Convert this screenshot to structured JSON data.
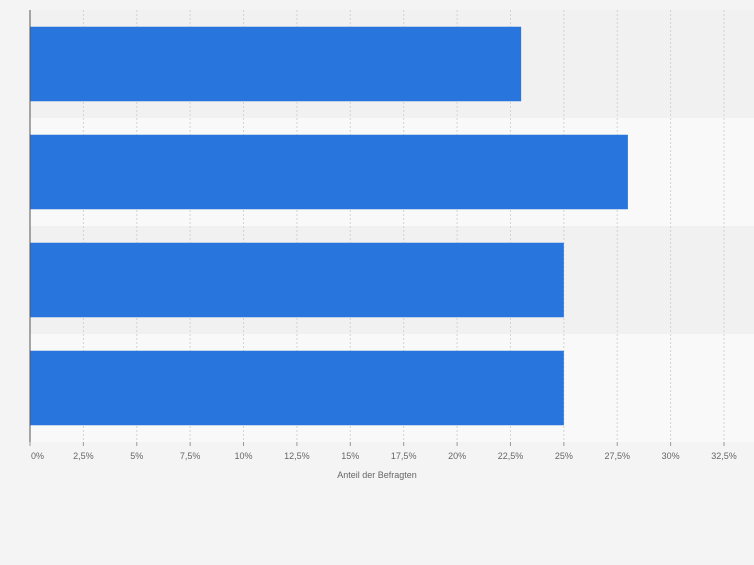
{
  "chart_data": {
    "type": "bar",
    "orientation": "horizontal",
    "categories": [
      "",
      "",
      "",
      ""
    ],
    "values": [
      23,
      28,
      25,
      25
    ],
    "xlabel": "Anteil der Befragten",
    "ylabel": "",
    "xlim": [
      0,
      32.5
    ],
    "ticks": [
      0,
      2.5,
      5,
      7.5,
      10,
      12.5,
      15,
      17.5,
      20,
      22.5,
      25,
      27.5,
      30,
      32.5
    ],
    "tick_labels": [
      "0%",
      "2,5%",
      "5%",
      "7,5%",
      "10%",
      "12,5%",
      "15%",
      "17,5%",
      "20%",
      "22,5%",
      "25%",
      "27,5%",
      "30%",
      "32,5%"
    ],
    "grid": true,
    "legend": "none",
    "bar_color": "#2876dd",
    "band_colors": [
      "#f1f1f1",
      "#f9f9f9"
    ]
  }
}
